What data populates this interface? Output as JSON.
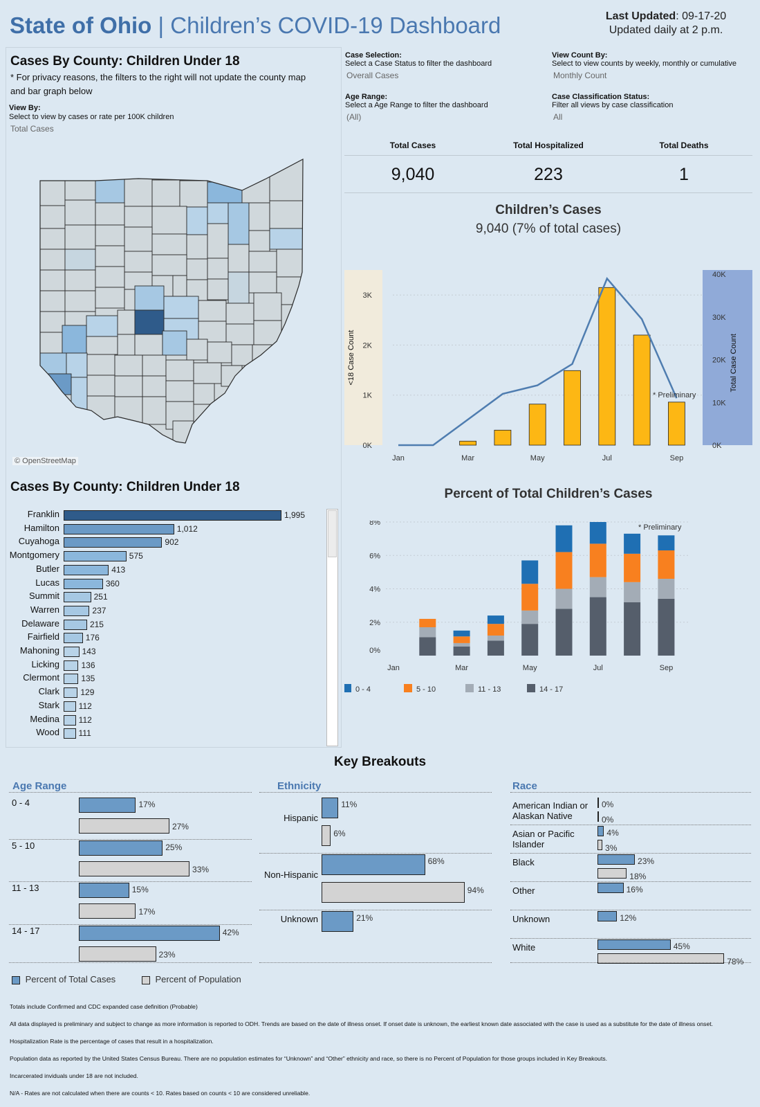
{
  "header": {
    "state": "State of Ohio",
    "sep": " | ",
    "dashboard": "Children’s COVID-19 Dashboard",
    "last_updated_label": "Last Updated",
    "last_updated_value": ": 09-17-20",
    "update_note": "Updated daily at 2 p.m."
  },
  "map_panel": {
    "title": "Cases By County: Children Under 18",
    "privacy_note_1": "* For privacy reasons, the filters to the right will not update the county map",
    "privacy_note_2": "and bar graph below",
    "view_by_label": "View By:",
    "view_by_help": "Select to view by cases or rate per 100K children",
    "view_by_value": "Total Cases",
    "attribution": "© OpenStreetMap"
  },
  "filters": {
    "case_selection_label": "Case Selection:",
    "case_selection_help": "Select a Case Status  to filter the dashboard",
    "case_selection_value": "Overall Cases",
    "view_count_label": "View Count By:",
    "view_count_help": "Select to view counts by weekly, monthly or cumulative",
    "view_count_value": "Monthly Count",
    "age_range_label": "Age Range:",
    "age_range_help": "Select a Age Range to filter the dashboard",
    "age_range_value": "(All)",
    "classification_label": "Case Classification Status:",
    "classification_help": "Filter all views by case classification",
    "classification_value": "All"
  },
  "kpis": [
    {
      "label": "Total Cases",
      "value": "9,040"
    },
    {
      "label": "Total Hospitalized",
      "value": "223"
    },
    {
      "label": "Total Deaths",
      "value": "1"
    }
  ],
  "county_bars": {
    "title": "Cases By County: Children Under 18",
    "items": [
      {
        "county": "Franklin",
        "value": 1995,
        "label": "1,995",
        "color": "#2f5b8a"
      },
      {
        "county": "Hamilton",
        "value": 1012,
        "label": "1,012",
        "color": "#6b9ac6"
      },
      {
        "county": "Cuyahoga",
        "value": 902,
        "label": "902",
        "color": "#6b9ac6"
      },
      {
        "county": "Montgomery",
        "value": 575,
        "label": "575",
        "color": "#8bb7dc"
      },
      {
        "county": "Butler",
        "value": 413,
        "label": "413",
        "color": "#8bb7dc"
      },
      {
        "county": "Lucas",
        "value": 360,
        "label": "360",
        "color": "#8bb7dc"
      },
      {
        "county": "Summit",
        "value": 251,
        "label": "251",
        "color": "#a6c8e3"
      },
      {
        "county": "Warren",
        "value": 237,
        "label": "237",
        "color": "#a6c8e3"
      },
      {
        "county": "Delaware",
        "value": 215,
        "label": "215",
        "color": "#a6c8e3"
      },
      {
        "county": "Fairfield",
        "value": 176,
        "label": "176",
        "color": "#a6c8e3"
      },
      {
        "county": "Mahoning",
        "value": 143,
        "label": "143",
        "color": "#b8d3e8"
      },
      {
        "county": "Licking",
        "value": 136,
        "label": "136",
        "color": "#b8d3e8"
      },
      {
        "county": "Clermont",
        "value": 135,
        "label": "135",
        "color": "#b8d3e8"
      },
      {
        "county": "Clark",
        "value": 129,
        "label": "129",
        "color": "#b8d3e8"
      },
      {
        "county": "Stark",
        "value": 112,
        "label": "112",
        "color": "#b8d3e8"
      },
      {
        "county": "Medina",
        "value": 112,
        "label": "112",
        "color": "#b8d3e8"
      },
      {
        "county": "Wood",
        "value": 111,
        "label": "111",
        "color": "#b8d3e8"
      }
    ]
  },
  "chart_data": [
    {
      "type": "bar",
      "title": "Children’s Cases",
      "subtitle": "9,040 (7% of total cases)",
      "categories": [
        "Jan",
        "Feb",
        "Mar",
        "Apr",
        "May",
        "Jun",
        "Jul",
        "Aug",
        "Sep"
      ],
      "tick_labels": [
        "Jan",
        "Mar",
        "May",
        "Jul",
        "Sep"
      ],
      "series": [
        {
          "name": "<18 Case Count",
          "type": "bar",
          "values": [
            0,
            0,
            80,
            300,
            820,
            1490,
            3150,
            2200,
            860
          ],
          "color": "#fdb714"
        },
        {
          "name": "Total Case Count",
          "type": "line",
          "values": [
            0,
            0,
            6000,
            12000,
            14000,
            19000,
            39000,
            29500,
            11000
          ],
          "color": "#4f7db0"
        }
      ],
      "ylabel_left": "<18 Case Count",
      "ylabel_right": "Total Case Count",
      "ylim_left": [
        0,
        3500
      ],
      "yticks_left": [
        "0K",
        "1K",
        "2K",
        "3K"
      ],
      "ylim_right": [
        0,
        41000
      ],
      "yticks_right": [
        "0K",
        "10K",
        "20K",
        "30K",
        "40K"
      ],
      "annotation": "* Preliminary"
    },
    {
      "type": "bar",
      "stacked": true,
      "title": "Percent of Total Children’s Cases",
      "categories": [
        "Jan",
        "Feb",
        "Mar",
        "Apr",
        "May",
        "Jun",
        "Jul",
        "Aug",
        "Sep"
      ],
      "tick_labels": [
        "Jan",
        "Mar",
        "May",
        "Jul",
        "Sep"
      ],
      "series": [
        {
          "name": "14 - 17",
          "values": [
            0,
            1.1,
            0.55,
            0.9,
            1.9,
            2.8,
            3.5,
            3.2,
            3.4
          ],
          "color": "#555e6b"
        },
        {
          "name": "11 - 13",
          "values": [
            0,
            0.6,
            0.2,
            0.3,
            0.8,
            1.2,
            1.2,
            1.2,
            1.2
          ],
          "color": "#a3acb6"
        },
        {
          "name": "5 - 10",
          "values": [
            0,
            0.5,
            0.4,
            0.7,
            1.6,
            2.2,
            2.0,
            1.7,
            1.7
          ],
          "color": "#f8801f"
        },
        {
          "name": "0 - 4",
          "values": [
            0,
            0.0,
            0.35,
            0.5,
            1.4,
            1.6,
            1.3,
            1.2,
            0.9
          ],
          "color": "#1f6fb3"
        }
      ],
      "legend_order": [
        "0 - 4",
        "5 - 10",
        "11 - 13",
        "14 - 17"
      ],
      "ylim": [
        0,
        8
      ],
      "yticks": [
        "0%",
        "2%",
        "4%",
        "6%",
        "8%"
      ],
      "annotation": "* Preliminary"
    }
  ],
  "breakouts": {
    "title": "Key Breakouts",
    "age": {
      "title": "Age Range",
      "rows": [
        {
          "label": "0 - 4",
          "cases": 17,
          "cases_label": "17%",
          "pop": 27,
          "pop_label": "27%"
        },
        {
          "label": "5 - 10",
          "cases": 25,
          "cases_label": "25%",
          "pop": 33,
          "pop_label": "33%"
        },
        {
          "label": "11 - 13",
          "cases": 15,
          "cases_label": "15%",
          "pop": 17,
          "pop_label": "17%"
        },
        {
          "label": "14 - 17",
          "cases": 42,
          "cases_label": "42%",
          "pop": 23,
          "pop_label": "23%"
        }
      ]
    },
    "ethnicity": {
      "title": "Ethnicity",
      "rows": [
        {
          "label": "Hispanic",
          "cases": 11,
          "cases_label": "11%",
          "pop": 6,
          "pop_label": "6%"
        },
        {
          "label": "Non-Hispanic",
          "cases": 68,
          "cases_label": "68%",
          "pop": 94,
          "pop_label": "94%"
        },
        {
          "label": "Unknown",
          "cases": 21,
          "cases_label": "21%",
          "pop": null,
          "pop_label": null
        }
      ]
    },
    "race": {
      "title": "Race",
      "rows": [
        {
          "label": "American Indian or Alaskan Native",
          "cases": 0,
          "cases_label": "0%",
          "pop": 0,
          "pop_label": "0%"
        },
        {
          "label": "Asian or Pacific Islander",
          "cases": 4,
          "cases_label": "4%",
          "pop": 3,
          "pop_label": "3%"
        },
        {
          "label": "Black",
          "cases": 23,
          "cases_label": "23%",
          "pop": 18,
          "pop_label": "18%"
        },
        {
          "label": "Other",
          "cases": 16,
          "cases_label": "16%",
          "pop": null,
          "pop_label": null
        },
        {
          "label": "Unknown",
          "cases": 12,
          "cases_label": "12%",
          "pop": null,
          "pop_label": null
        },
        {
          "label": "White",
          "cases": 45,
          "cases_label": "45%",
          "pop": 78,
          "pop_label": "78%"
        }
      ]
    },
    "legend_cases": "Percent of Total Cases",
    "legend_pop": "Percent of Population"
  },
  "footnotes": [
    "Totals include Confirmed and CDC expanded case definition (Probable)",
    "All data displayed is preliminary and subject to change as more information is reported to ODH. Trends are based on the date of illness onset. If onset date is unknown, the earliest known date associated with the case is used as a substitute for the date of illness onset.",
    "Hospitalization Rate is the percentage of cases that result in a hospitalization.",
    "Population data as reported by the United States Census Bureau.  There are no population estimates for “Unknown” and “Other” ethnicity and race, so there is no Percent of Population for those groups included in Key Breakouts.",
    "Incarcerated inviduals under 18 are not included.",
    "N/A - Rates are not calculated when there are counts < 10. Rates based on counts < 10 are considered unreliable."
  ]
}
